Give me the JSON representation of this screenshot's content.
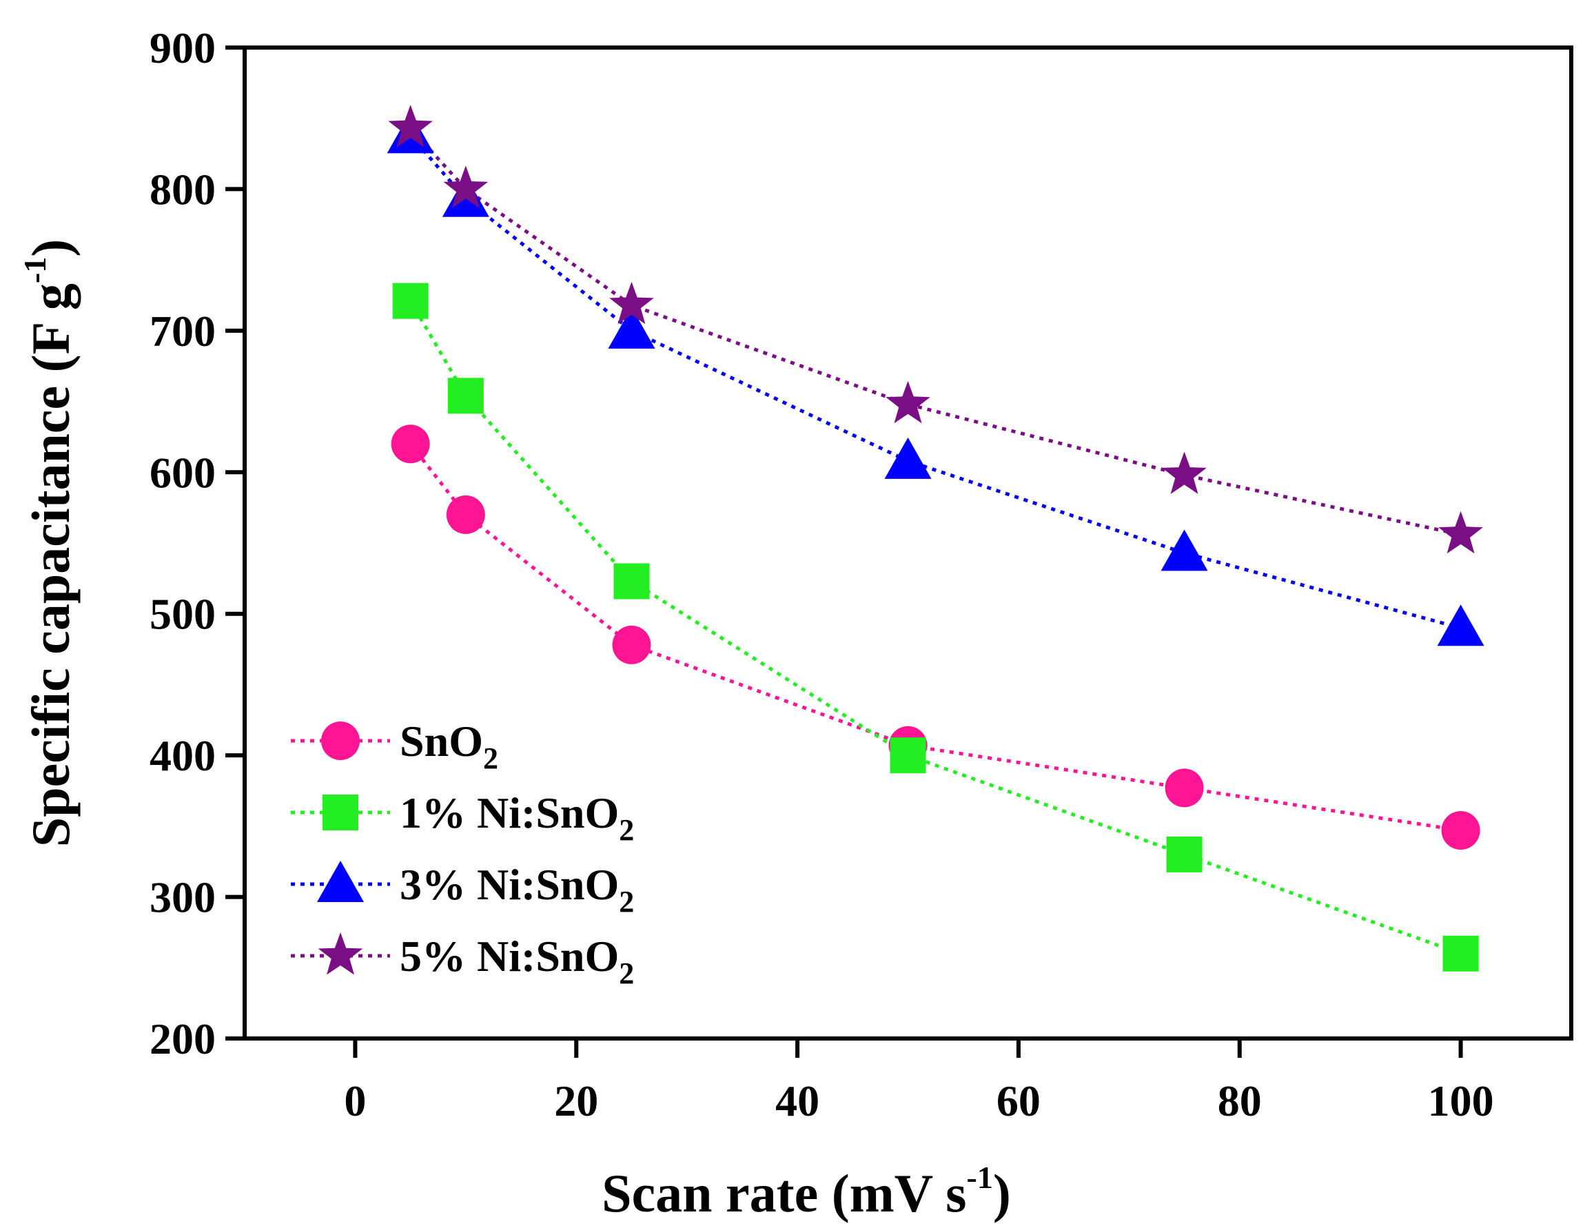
{
  "chart_data": {
    "type": "line",
    "title": "",
    "xlabel": {
      "main": "Scan rate (mV s",
      "sup": "-1",
      "end": ")"
    },
    "ylabel": {
      "main": "Specific capacitance (F g",
      "sup": "-1",
      "end": ")"
    },
    "xlim": [
      -10,
      110
    ],
    "ylim": [
      200,
      900
    ],
    "xticks": [
      0,
      20,
      40,
      60,
      80,
      100
    ],
    "yticks": [
      200,
      300,
      400,
      500,
      600,
      700,
      800,
      900
    ],
    "grid": false,
    "legend_position": "bottom-left",
    "series": [
      {
        "name": "SnO2",
        "label_main": "SnO",
        "label_sub": "2",
        "color": "#ff1493",
        "marker": "circle",
        "line_style": "dotted",
        "x": [
          5,
          10,
          25,
          50,
          75,
          100
        ],
        "y": [
          620,
          570,
          478,
          407,
          377,
          347
        ]
      },
      {
        "name": "1% Ni:SnO2",
        "label_main": "1% Ni:SnO",
        "label_sub": "2",
        "color": "#22ee22",
        "marker": "square",
        "line_style": "dotted",
        "x": [
          5,
          10,
          25,
          50,
          75,
          100
        ],
        "y": [
          721,
          654,
          523,
          400,
          330,
          260
        ]
      },
      {
        "name": "3% Ni:SnO2",
        "label_main": "3% Ni:SnO",
        "label_sub": "2",
        "color": "#0000ff",
        "marker": "triangle",
        "line_style": "dotted",
        "x": [
          5,
          10,
          25,
          50,
          75,
          100
        ],
        "y": [
          838,
          793,
          700,
          608,
          543,
          490
        ]
      },
      {
        "name": "5% Ni:SnO2",
        "label_main": "5% Ni:SnO",
        "label_sub": "2",
        "color": "#7a0f85",
        "marker": "star",
        "line_style": "dotted",
        "x": [
          5,
          10,
          25,
          50,
          75,
          100
        ],
        "y": [
          843,
          800,
          718,
          648,
          598,
          556
        ]
      }
    ]
  }
}
